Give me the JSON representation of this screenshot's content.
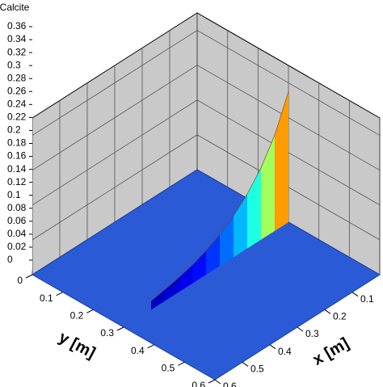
{
  "chart_data": {
    "type": "surface3d",
    "zlabel": "Calcite",
    "xlabel": "x [m]",
    "ylabel": "y [m]",
    "zlim": [
      0,
      0.36
    ],
    "zticks": [
      0,
      0.02,
      0.04,
      0.06,
      0.08,
      0.1,
      0.12,
      0.14,
      0.16,
      0.18,
      0.2,
      0.22,
      0.24,
      0.26,
      0.28,
      0.3,
      0.32,
      0.34,
      0.36
    ],
    "xlim": [
      0,
      0.6
    ],
    "xticks": [
      0.1,
      0.2,
      0.3,
      0.4,
      0.5,
      0.6
    ],
    "ylim": [
      0,
      0.6
    ],
    "yticks": [
      0,
      0.1,
      0.2,
      0.3,
      0.4,
      0.5,
      0.6
    ],
    "ridge_y": 0.3,
    "x": [
      0,
      0.05,
      0.1,
      0.15,
      0.2,
      0.25,
      0.3,
      0.35,
      0.4,
      0.45,
      0.5
    ],
    "values": [
      0.3,
      0.22,
      0.165,
      0.125,
      0.095,
      0.072,
      0.055,
      0.042,
      0.033,
      0.026,
      0.02
    ],
    "floor_color": "#2a5ad6",
    "wall_color": "#c9c9c9",
    "grid": true
  }
}
